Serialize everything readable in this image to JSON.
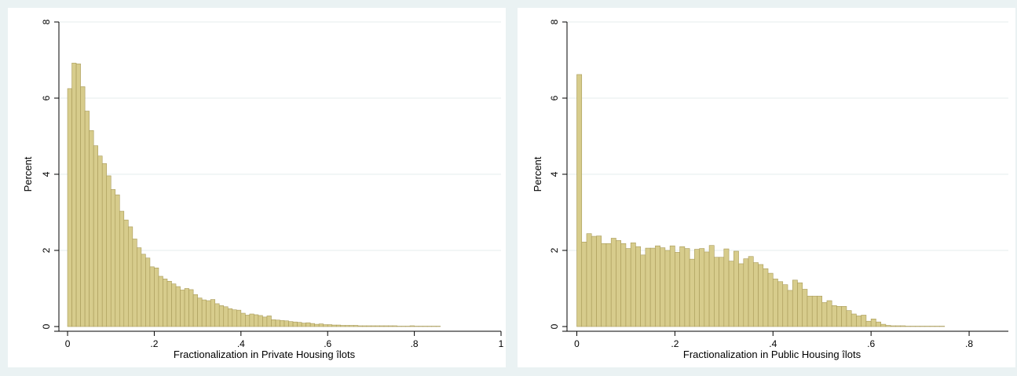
{
  "colors": {
    "page_background": "#eaf2f3",
    "plot_background": "#ffffff",
    "bar_fill": "#d7cc8c",
    "bar_stroke": "#a89a58",
    "grid": "#e6eeee",
    "axis": "#000000"
  },
  "chart_data": [
    {
      "type": "bar",
      "subtype": "histogram",
      "xlabel": "Fractionalization in Private Housing îlots",
      "ylabel": "Percent",
      "xlim": [
        -0.02,
        1.0
      ],
      "ylim": [
        0,
        8
      ],
      "xticks": [
        0,
        0.2,
        0.4,
        0.6,
        0.8,
        1
      ],
      "xtick_labels": [
        "0",
        ".2",
        ".4",
        ".6",
        ".8",
        "1"
      ],
      "yticks": [
        0,
        2,
        4,
        6,
        8
      ],
      "ytick_labels": [
        "0",
        "2",
        "4",
        "6",
        "8"
      ],
      "grid": true,
      "bin_start": 0,
      "bin_width": 0.01,
      "values": [
        6.25,
        6.92,
        6.9,
        6.3,
        5.66,
        5.15,
        4.75,
        4.48,
        4.28,
        3.96,
        3.6,
        3.46,
        3.03,
        2.8,
        2.62,
        2.3,
        2.07,
        1.9,
        1.8,
        1.57,
        1.54,
        1.32,
        1.25,
        1.19,
        1.12,
        1.05,
        0.96,
        1.0,
        0.97,
        0.84,
        0.75,
        0.7,
        0.68,
        0.71,
        0.6,
        0.55,
        0.52,
        0.47,
        0.44,
        0.43,
        0.35,
        0.3,
        0.33,
        0.31,
        0.29,
        0.25,
        0.28,
        0.18,
        0.17,
        0.16,
        0.15,
        0.13,
        0.12,
        0.11,
        0.09,
        0.1,
        0.08,
        0.06,
        0.07,
        0.05,
        0.05,
        0.04,
        0.04,
        0.03,
        0.03,
        0.03,
        0.03,
        0.02,
        0.02,
        0.02,
        0.02,
        0.02,
        0.02,
        0.02,
        0.02,
        0.02,
        0.01,
        0.01,
        0.01,
        0.02,
        0.01,
        0.01,
        0.01,
        0.01,
        0.01,
        0.01,
        0.0,
        0.0,
        0.0,
        0.0,
        0.0,
        0.0,
        0.0,
        0.0,
        0.0
      ]
    },
    {
      "type": "bar",
      "subtype": "histogram",
      "xlabel": "Fractionalization in Public Housing îlots",
      "ylabel": "Percent",
      "xlim": [
        -0.02,
        0.88
      ],
      "ylim": [
        0,
        8
      ],
      "xticks": [
        0,
        0.2,
        0.4,
        0.6,
        0.8
      ],
      "xtick_labels": [
        "0",
        ".2",
        ".4",
        ".6",
        ".8"
      ],
      "yticks": [
        0,
        2,
        4,
        6,
        8
      ],
      "ytick_labels": [
        "0",
        "2",
        "4",
        "6",
        "8"
      ],
      "grid": true,
      "bin_start": 0,
      "bin_width": 0.01,
      "values": [
        6.62,
        2.22,
        2.44,
        2.37,
        2.38,
        2.18,
        2.18,
        2.32,
        2.26,
        2.18,
        2.05,
        2.2,
        2.1,
        1.88,
        2.06,
        2.06,
        2.12,
        2.07,
        2.0,
        2.12,
        1.95,
        2.1,
        2.05,
        1.77,
        2.03,
        2.05,
        1.96,
        2.13,
        1.82,
        1.82,
        2.04,
        1.72,
        1.98,
        1.65,
        1.78,
        1.84,
        1.68,
        1.63,
        1.52,
        1.4,
        1.25,
        1.18,
        1.1,
        0.95,
        1.22,
        1.15,
        0.98,
        0.8,
        0.8,
        0.8,
        0.63,
        0.68,
        0.55,
        0.53,
        0.53,
        0.42,
        0.33,
        0.28,
        0.3,
        0.14,
        0.2,
        0.12,
        0.06,
        0.03,
        0.02,
        0.02,
        0.02,
        0.01,
        0.01,
        0.01,
        0.01,
        0.01,
        0.01,
        0.01,
        0.01,
        0.0,
        0.0,
        0.0,
        0.0,
        0.0,
        0.0,
        0.0,
        0.0,
        0.0,
        0.0
      ]
    }
  ]
}
